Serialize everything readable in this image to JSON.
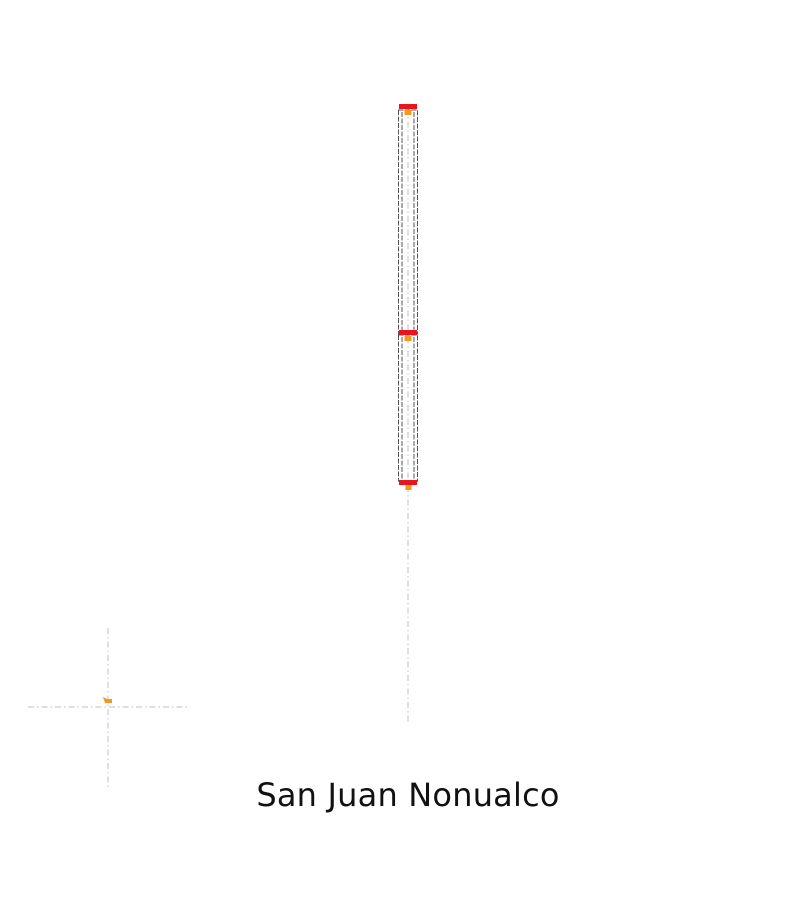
{
  "title": "San Juan Nonualco",
  "colors": {
    "background": "#ffffff",
    "frame_stroke": "#555555",
    "guide_stroke": "#cccccc",
    "flange": "#e8141e",
    "node": "#f39a1e",
    "text": "#111111"
  }
}
